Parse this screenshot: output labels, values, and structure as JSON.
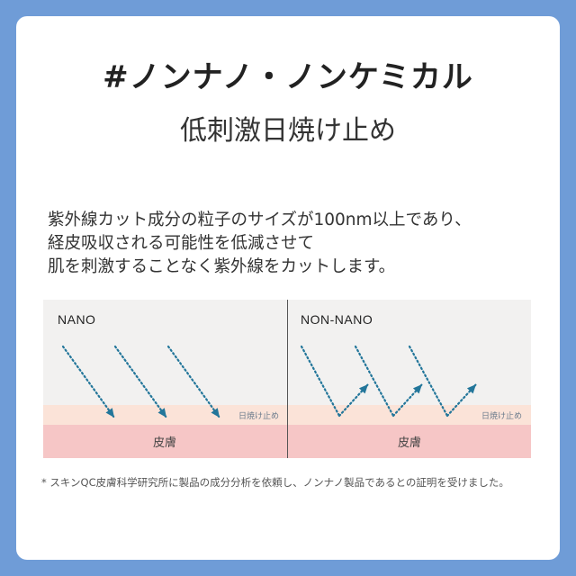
{
  "heading": {
    "title": "#ノンナノ・ノンケミカル",
    "subtitle": "低刺激日焼け止め"
  },
  "description": {
    "lines": [
      "紫外線カット成分の粒子のサイズが100nm以上であり、",
      "経皮吸収される可能性を低減させて",
      "肌を刺激することなく紫外線をカットします。"
    ]
  },
  "diagram": {
    "panels": [
      {
        "label": "NANO",
        "layer_label": "日焼け止め",
        "skin_label": "皮膚",
        "behavior": "penetrates"
      },
      {
        "label": "NON-NANO",
        "layer_label": "日焼け止め",
        "skin_label": "皮膚",
        "behavior": "reflects"
      }
    ],
    "colors": {
      "background": "#f2f1f0",
      "sunscreen_layer": "#fbe3d8",
      "skin_layer": "#f6c6c6",
      "arrow": "#23769a",
      "divider": "#555555"
    }
  },
  "footnote": "* スキンQC皮膚科学研究所に製品の成分分析を依頼し、ノンナノ製品であるとの証明を受けました。",
  "colors": {
    "page_background": "#6f9cd7",
    "card": "#ffffff"
  }
}
